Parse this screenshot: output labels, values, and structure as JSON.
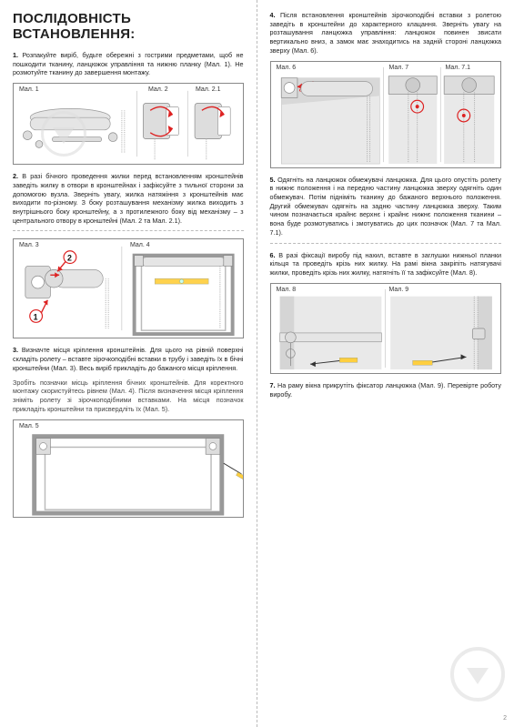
{
  "title": "ПОСЛІДОВНІСТЬ ВСТАНОВЛЕННЯ:",
  "left": {
    "p1": "1. Розпакуйте виріб, будьте обережні з гострими предметами, щоб не пошкодити тканину, ланцюжок управління та нижню планку (Мал. 1). Не розмотуйте тканину до завершення монтажу.",
    "fig1": {
      "l1": "Мал. 1",
      "l2": "Мал. 2",
      "l3": "Мал. 2.1"
    },
    "p2": "2. В разі бічного проведення жилки перед встановленням кронштейнів заведіть жилку в отвори в кронштейнах і зафіксуйте з тильної сторони за допомогою вузла. Зверніть увагу, жилка натяжіння з кронштейнів має виходити по-різному. З боку розташування механізму жилка виходить з внутрішнього боку кронштейну, а з протилежного боку від механізму – з центрального отвору в кронштейні (Мал. 2 та Мал. 2.1).",
    "fig2": {
      "l1": "Мал. 3",
      "l2": "Мал. 4"
    },
    "p3": "3. Визначте місця кріплення кронштейнів. Для цього на рівній поверхні складіть ролету – вставте зірочкоподібні вставки в трубу і заведіть їх в бічні кронштейни (Мал. 3). Весь виріб прикладіть до бажаного місця кріплення.",
    "p3b": "Зробіть позначки місць кріплення бічних кронштейнів. Для коректного монтажу скористуйтесь рівнем (Мал. 4). Після визначення місця кріплення зніміть ролету зі зірочкоподібними вставками. На місця позначок прикладіть кронштейни та присвердліть їх (Мал. 5).",
    "fig3": {
      "l1": "Мал. 5"
    }
  },
  "right": {
    "p4": "4. Після встановлення кронштейнів зірочкоподібні вставки з ролетою заведіть в кронштейни до характерного клацання. Зверніть увагу на розташування ланцюжка управління: ланцюжок повинен звисати вертикально вниз, а замок має знаходитись на задній стороні ланцюжка зверху (Мал. 6).",
    "fig4": {
      "l1": "Мал. 6",
      "l2": "Мал. 7",
      "l3": "Мал. 7.1"
    },
    "p5": "5. Одягніть на ланцюжок обмежувачі ланцюжка. Для цього опустіть ролету в нижнє положення і на передню частину ланцюжка зверху одягніть один обмежувач. Потім підніміть тканину до бажаного верхнього положення. Другий обмежувач одягніть на задню частину ланцюжка зверху. Таким чином позначається крайнє верхнє і крайнє нижнє положення тканини – вона буде розмотуватись і змотуватись до цих позначок (Мал. 7 та Мал. 7.1).",
    "p6": "6. В разі фіксації виробу під нахил, вставте в заглушки нижньої планки кільця та проведіть крізь них жилку. На рамі вікна закріпіть натягувачі жилки, проведіть крізь них жилку, натягніть її та зафіксуйте (Мал. 8).",
    "fig5": {
      "l1": "Мал. 8",
      "l2": "Мал. 9"
    },
    "p7": "7. На раму вікна прикрутіть фіксатор ланцюжка (Мал. 9). Перевірте роботу виробу.",
    "page": "2"
  },
  "colors": {
    "text": "#444",
    "heading": "#222",
    "border": "#888",
    "dash": "#bbb",
    "accent": "#d22",
    "gray": "#ddd",
    "watermark": "#ddd"
  }
}
